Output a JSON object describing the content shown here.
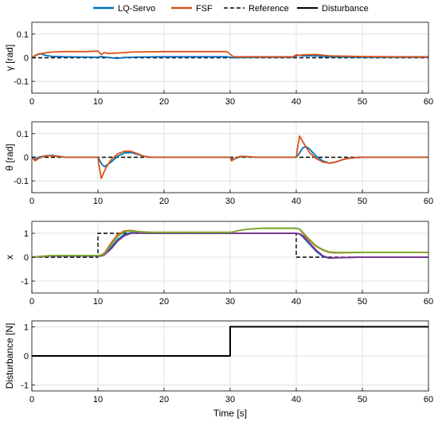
{
  "legend": {
    "entries": [
      {
        "name": "LQ-Servo",
        "color": "#0072BD",
        "style": "solid"
      },
      {
        "name": "FSF",
        "color": "#D95319",
        "style": "solid"
      },
      {
        "name": "Reference",
        "color": "#000000",
        "style": "dashed"
      },
      {
        "name": "Disturbance",
        "color": "#000000",
        "style": "solid"
      }
    ]
  },
  "colors": {
    "lq_servo": "#0072BD",
    "fsf": "#D95319",
    "extra_purple": "#7E2F8E",
    "extra_olive": "#77AC30",
    "reference": "#000000",
    "disturbance": "#000000",
    "grid": "#dcdcdc"
  },
  "chart_data": [
    {
      "type": "line",
      "ylabel": "γ [rad]",
      "xlabel": "",
      "xlim": [
        0,
        60
      ],
      "ylim": [
        -0.15,
        0.15
      ],
      "xticks": [
        0,
        10,
        20,
        30,
        40,
        50,
        60
      ],
      "yticks": [
        -0.1,
        0,
        0.1
      ],
      "ytick_labels": [
        "-0.1",
        "0",
        "0.1"
      ],
      "grid": true,
      "series": [
        {
          "name": "Reference",
          "color": "#000000",
          "dash": true,
          "x": [
            0,
            60
          ],
          "y": [
            0,
            0
          ]
        },
        {
          "name": "LQ-Servo",
          "color": "#0072BD",
          "x": [
            0,
            0.5,
            1,
            1.5,
            2,
            3,
            5,
            8,
            10,
            10.5,
            11,
            13,
            14,
            16,
            20,
            25,
            29.5,
            30.5,
            32,
            35,
            39.5,
            40,
            40.5,
            41,
            43,
            45,
            50,
            55,
            60
          ],
          "y": [
            0,
            0.008,
            0.015,
            0.016,
            0.01,
            0.006,
            0.004,
            0.003,
            0.002,
            0.005,
            0.003,
            -0.003,
            0.001,
            0.003,
            0.004,
            0.004,
            0.004,
            0.0,
            0.001,
            0.002,
            0.002,
            0.008,
            0.01,
            0.008,
            0.008,
            0.004,
            0.002,
            0.002,
            0.002
          ]
        },
        {
          "name": "FSF",
          "color": "#D95319",
          "x": [
            0,
            0.5,
            1,
            1.5,
            2,
            3,
            5,
            8,
            10,
            10.5,
            11,
            11.5,
            13,
            15,
            20,
            25,
            29.5,
            30.5,
            32,
            35,
            39.5,
            40,
            40.5,
            41,
            43,
            45,
            50,
            55,
            60
          ],
          "y": [
            0,
            0.01,
            0.016,
            0.018,
            0.02,
            0.024,
            0.026,
            0.026,
            0.028,
            0.014,
            0.022,
            0.018,
            0.02,
            0.024,
            0.026,
            0.026,
            0.026,
            0.004,
            0.004,
            0.004,
            0.004,
            0.012,
            0.01,
            0.012,
            0.014,
            0.008,
            0.005,
            0.004,
            0.004
          ]
        }
      ]
    },
    {
      "type": "line",
      "ylabel": "θ [rad]",
      "xlabel": "",
      "xlim": [
        0,
        60
      ],
      "ylim": [
        -0.15,
        0.15
      ],
      "xticks": [
        0,
        10,
        20,
        30,
        40,
        50,
        60
      ],
      "yticks": [
        -0.1,
        0,
        0.1
      ],
      "ytick_labels": [
        "-0.1",
        "0",
        "0.1"
      ],
      "grid": true,
      "series": [
        {
          "name": "Reference",
          "color": "#000000",
          "dash": true,
          "x": [
            0,
            60
          ],
          "y": [
            0,
            0
          ]
        },
        {
          "name": "LQ-Servo",
          "color": "#0072BD",
          "x": [
            0,
            0.5,
            1,
            2,
            3,
            4,
            5,
            10,
            10.2,
            10.6,
            11,
            12,
            13,
            14,
            15,
            16,
            17,
            18,
            20,
            30,
            30.3,
            30.8,
            31.5,
            32.5,
            34,
            40,
            40.3,
            41,
            41.5,
            42,
            43,
            44,
            45,
            46,
            47,
            48,
            50,
            60
          ],
          "y": [
            0,
            -0.01,
            0.0,
            0.006,
            0.008,
            0.004,
            0.0,
            0.0,
            -0.01,
            -0.03,
            -0.04,
            -0.02,
            0.005,
            0.018,
            0.02,
            0.012,
            0.004,
            0.0,
            0.0,
            0.0,
            -0.008,
            -0.006,
            0.002,
            0.003,
            0.0,
            0.0,
            0.01,
            0.04,
            0.045,
            0.035,
            0.005,
            -0.015,
            -0.025,
            -0.02,
            -0.01,
            -0.004,
            0.0,
            0.0
          ]
        },
        {
          "name": "FSF",
          "color": "#D95319",
          "x": [
            0,
            0.5,
            1,
            2,
            3,
            4,
            5,
            10,
            10.2,
            10.5,
            10.8,
            11.3,
            12,
            13,
            14,
            15,
            16,
            17,
            18,
            20,
            30,
            30.2,
            30.6,
            31.5,
            32.5,
            34,
            40,
            40.2,
            40.5,
            41,
            42,
            43,
            44,
            45,
            46,
            47,
            48,
            50,
            60
          ],
          "y": [
            0,
            -0.015,
            -0.005,
            0.006,
            0.006,
            0.004,
            0.0,
            0.0,
            -0.04,
            -0.09,
            -0.07,
            -0.04,
            -0.01,
            0.015,
            0.025,
            0.025,
            0.015,
            0.004,
            0.0,
            0.0,
            0.0,
            -0.015,
            -0.008,
            0.004,
            0.003,
            0.0,
            0.0,
            0.04,
            0.09,
            0.065,
            0.02,
            -0.005,
            -0.02,
            -0.025,
            -0.02,
            -0.01,
            -0.004,
            0.0,
            0.0
          ]
        }
      ]
    },
    {
      "type": "line",
      "ylabel": "x",
      "xlabel": "",
      "xlim": [
        0,
        60
      ],
      "ylim": [
        -1.5,
        1.5
      ],
      "xticks": [
        0,
        10,
        20,
        30,
        40,
        50,
        60
      ],
      "yticks": [
        -1,
        0,
        1
      ],
      "ytick_labels": [
        "-1",
        "0",
        "1"
      ],
      "grid": true,
      "series": [
        {
          "name": "Reference",
          "color": "#000000",
          "dash": true,
          "x": [
            0,
            10,
            10,
            40,
            40,
            60
          ],
          "y": [
            0,
            0,
            1,
            1,
            0,
            0
          ]
        },
        {
          "name": "LQ-Servo",
          "color": "#0072BD",
          "x": [
            0,
            1,
            2,
            3,
            4,
            10,
            10.5,
            11,
            12,
            13,
            14,
            15,
            16,
            18,
            20,
            30,
            40,
            40.5,
            41,
            42,
            43,
            44,
            45,
            46,
            48,
            50,
            60
          ],
          "y": [
            0,
            0.02,
            0.04,
            0.06,
            0.05,
            0.05,
            0.06,
            0.12,
            0.42,
            0.75,
            0.95,
            1.03,
            1.02,
            1.0,
            1.0,
            1.0,
            1.0,
            0.97,
            0.85,
            0.55,
            0.25,
            0.03,
            -0.04,
            -0.03,
            -0.01,
            0.0,
            0.0
          ]
        },
        {
          "name": "FSF",
          "color": "#D95319",
          "x": [
            0,
            1,
            2,
            3,
            4,
            10,
            10.5,
            11,
            12,
            13,
            14,
            15,
            16,
            18,
            20,
            30,
            30.5,
            31,
            32,
            33,
            34,
            35,
            36,
            40,
            40.5,
            41,
            42,
            43,
            44,
            45,
            46,
            48,
            50,
            60
          ],
          "y": [
            0,
            0.03,
            0.05,
            0.07,
            0.07,
            0.07,
            0.09,
            0.18,
            0.6,
            0.95,
            1.1,
            1.12,
            1.08,
            1.04,
            1.04,
            1.04,
            1.06,
            1.1,
            1.15,
            1.18,
            1.2,
            1.21,
            1.21,
            1.21,
            1.17,
            1.0,
            0.7,
            0.45,
            0.3,
            0.2,
            0.18,
            0.19,
            0.2,
            0.2
          ]
        },
        {
          "name": "",
          "color": "#7E2F8E",
          "x": [
            0,
            1,
            2,
            3,
            4,
            10,
            10.5,
            11,
            12,
            13,
            14,
            15,
            16,
            18,
            20,
            30,
            40,
            40.5,
            41,
            42,
            43,
            44,
            45,
            46,
            48,
            50,
            60
          ],
          "y": [
            0,
            0.015,
            0.035,
            0.05,
            0.045,
            0.045,
            0.05,
            0.1,
            0.35,
            0.68,
            0.9,
            1.0,
            1.01,
            1.0,
            1.0,
            1.0,
            1.0,
            0.98,
            0.9,
            0.6,
            0.3,
            0.06,
            -0.03,
            -0.02,
            -0.01,
            0.0,
            0.0
          ]
        },
        {
          "name": "",
          "color": "#77AC30",
          "x": [
            0,
            1,
            2,
            3,
            4,
            10,
            10.5,
            11,
            12,
            13,
            14,
            15,
            16,
            18,
            20,
            30,
            30.5,
            31,
            32,
            33,
            34,
            35,
            36,
            40,
            40.5,
            41,
            42,
            43,
            44,
            45,
            46,
            48,
            50,
            60
          ],
          "y": [
            0,
            0.025,
            0.045,
            0.065,
            0.065,
            0.065,
            0.08,
            0.15,
            0.52,
            0.88,
            1.06,
            1.1,
            1.07,
            1.04,
            1.04,
            1.04,
            1.06,
            1.1,
            1.15,
            1.18,
            1.2,
            1.21,
            1.21,
            1.21,
            1.18,
            1.04,
            0.74,
            0.48,
            0.32,
            0.22,
            0.2,
            0.2,
            0.2,
            0.2
          ]
        }
      ]
    },
    {
      "type": "line",
      "ylabel": "Disturbance [N]",
      "xlabel": "Time [s]",
      "xlim": [
        0,
        60
      ],
      "ylim": [
        -1.2,
        1.2
      ],
      "xticks": [
        0,
        10,
        20,
        30,
        40,
        50,
        60
      ],
      "yticks": [
        -1,
        0,
        1
      ],
      "ytick_labels": [
        "-1",
        "0",
        "1"
      ],
      "grid": true,
      "series": [
        {
          "name": "Disturbance",
          "color": "#000000",
          "x": [
            0,
            30,
            30,
            60
          ],
          "y": [
            0,
            0,
            1,
            1
          ]
        }
      ]
    }
  ]
}
